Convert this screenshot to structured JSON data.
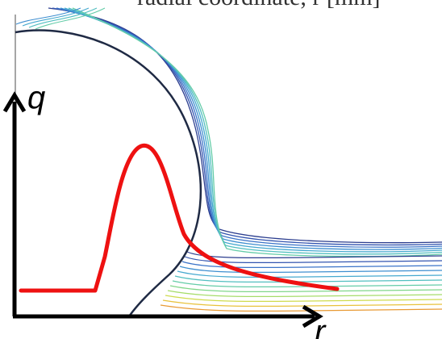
{
  "figure": {
    "top_caption": "radial coordinate, r [mm]",
    "y_axis_label": "q",
    "x_axis_label": "r"
  },
  "colors": {
    "background": "#ffffff",
    "interface_line": "#1f2a44",
    "axis": "#000000",
    "heat_flux_curve": "#ee1111",
    "contours": [
      "#2c3e8f",
      "#3355b0",
      "#3a73c8",
      "#3f8fd0",
      "#46a9cf",
      "#52bfc0",
      "#64cca8",
      "#80d68a",
      "#a6dc6a",
      "#cfdb4e",
      "#e8c23c",
      "#e89a34"
    ]
  },
  "icons": {
    "y_axis_arrow": "arrow-up-icon",
    "x_axis_arrow": "arrow-right-icon"
  }
}
